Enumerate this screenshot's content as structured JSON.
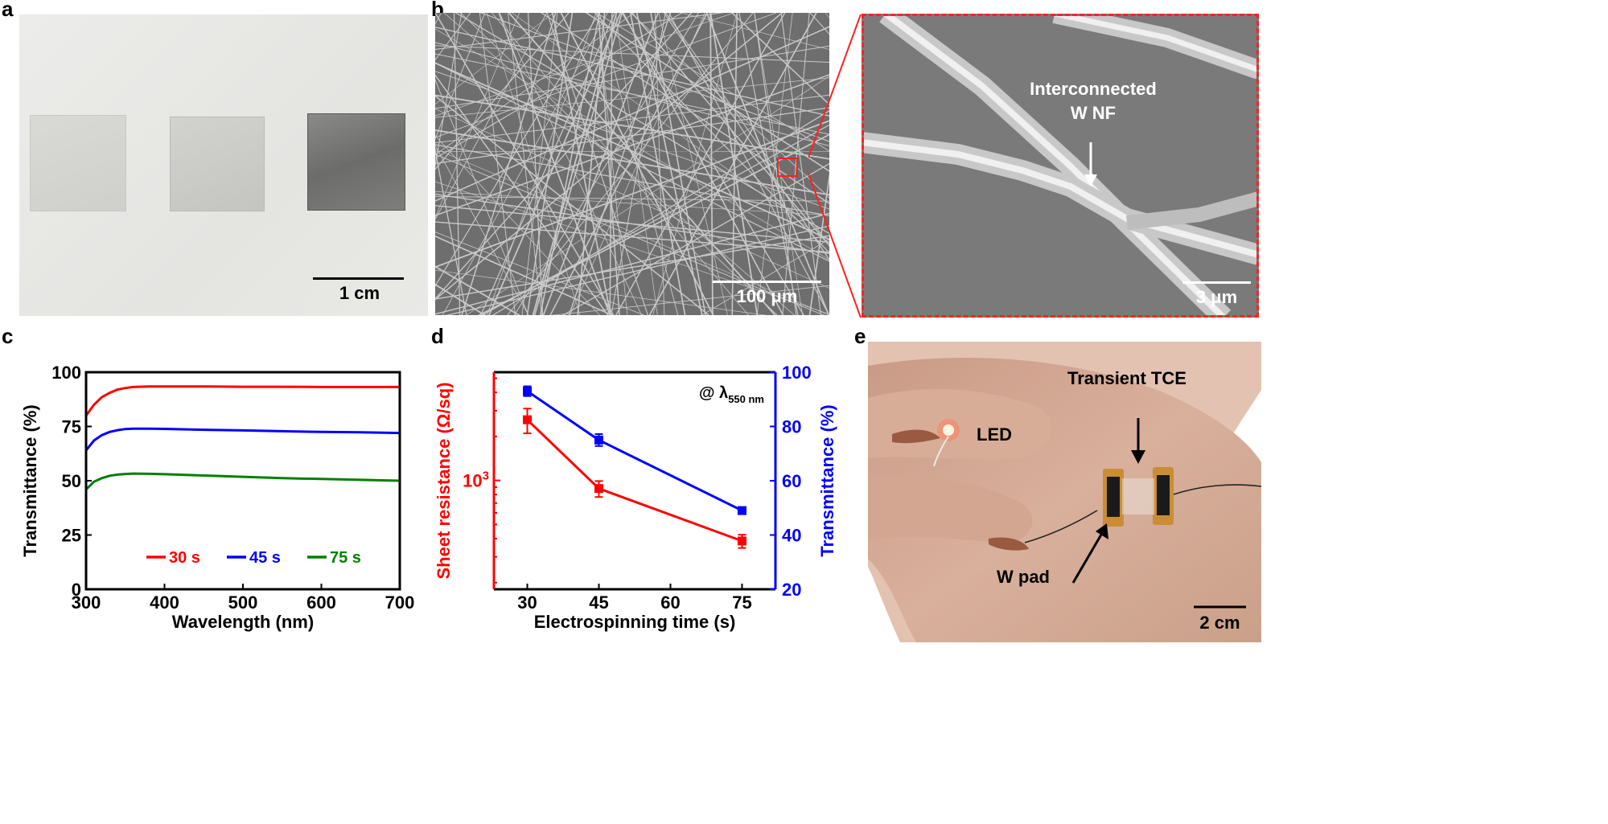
{
  "panels": {
    "a": {
      "letter": "a",
      "scale_label": "1 cm"
    },
    "b": {
      "letter": "b",
      "scale_label": "100 μm",
      "inset_scale_label": "3 μm",
      "inset_annotation_line1": "Interconnected",
      "inset_annotation_line2": "W NF"
    },
    "c": {
      "letter": "c"
    },
    "d": {
      "letter": "d",
      "annotation_prefix": "@ λ",
      "annotation_sub": "550 nm"
    },
    "e": {
      "letter": "e",
      "label_led": "LED",
      "label_tce": "Transient TCE",
      "label_wpad": "W pad",
      "scale_label": "2 cm"
    }
  },
  "chart_data": [
    {
      "panel": "c",
      "type": "line",
      "xlabel": "Wavelength (nm)",
      "ylabel": "Transmittance (%)",
      "xlim": [
        300,
        700
      ],
      "ylim": [
        0,
        100
      ],
      "xticks": [
        300,
        400,
        500,
        600,
        700
      ],
      "yticks": [
        0,
        25,
        50,
        75,
        100
      ],
      "legend_position": "bottom-center",
      "series": [
        {
          "name": "30 s",
          "color": "#ff0000",
          "x": [
            300,
            310,
            320,
            330,
            340,
            350,
            360,
            380,
            400,
            450,
            500,
            550,
            600,
            650,
            700
          ],
          "y": [
            80,
            85,
            88.5,
            90.5,
            92,
            92.7,
            93.2,
            93.4,
            93.4,
            93.4,
            93.3,
            93.3,
            93.2,
            93.2,
            93.2
          ]
        },
        {
          "name": "45 s",
          "color": "#0000ff",
          "x": [
            300,
            310,
            320,
            330,
            340,
            350,
            360,
            380,
            400,
            450,
            500,
            550,
            600,
            650,
            700
          ],
          "y": [
            64,
            68.5,
            71,
            72.5,
            73.3,
            73.8,
            74,
            74,
            73.9,
            73.5,
            73.2,
            72.8,
            72.5,
            72.3,
            72
          ]
        },
        {
          "name": "75 s",
          "color": "#008000",
          "x": [
            300,
            310,
            320,
            330,
            340,
            350,
            360,
            380,
            400,
            450,
            500,
            550,
            600,
            650,
            700
          ],
          "y": [
            46,
            49.5,
            51.2,
            52.3,
            52.8,
            53.1,
            53.3,
            53.2,
            53,
            52.4,
            51.8,
            51.2,
            50.8,
            50.4,
            50
          ]
        }
      ]
    },
    {
      "panel": "d",
      "type": "line",
      "xlabel": "Electrospinning time (s)",
      "ylabel_left": "Sheet resistance (Ω/sq)",
      "ylabel_right": "Transmittance (%)",
      "xlim": [
        23,
        82
      ],
      "xticks": [
        30,
        45,
        60,
        75
      ],
      "y_left_scale": "log",
      "y_left_ticks": [
        {
          "value": 1000,
          "base": "10",
          "exp": "3"
        }
      ],
      "y_right_lim": [
        20,
        100
      ],
      "y_right_ticks": [
        20,
        40,
        60,
        80,
        100
      ],
      "series": [
        {
          "name": "Sheet resistance",
          "axis": "left",
          "color": "#ff0000",
          "marker": "square",
          "x": [
            30,
            45,
            75
          ],
          "y": [
            2600,
            880,
            385
          ],
          "err": [
            500,
            110,
            40
          ]
        },
        {
          "name": "Transmittance",
          "axis": "right",
          "color": "#0000ff",
          "marker": "square",
          "x": [
            30,
            45,
            75
          ],
          "y": [
            93,
            75,
            49
          ],
          "err": [
            1.8,
            2.2,
            1
          ]
        }
      ]
    }
  ]
}
